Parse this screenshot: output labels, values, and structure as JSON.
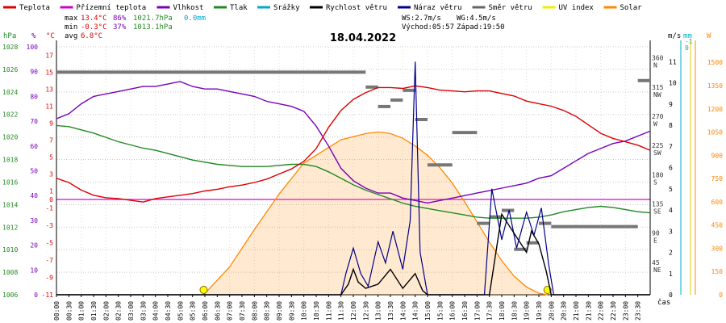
{
  "chart_data": {
    "type": "line",
    "title": "18.04.2022",
    "legend": [
      {
        "name": "Teplota",
        "color": "#dd0000"
      },
      {
        "name": "Přízemní teplota",
        "color": "#cc00cc"
      },
      {
        "name": "Vlhkost",
        "color": "#7700bb"
      },
      {
        "name": "Tlak",
        "color": "#228822"
      },
      {
        "name": "Srážky",
        "color": "#00aacc"
      },
      {
        "name": "Rychlost větru",
        "color": "#000000"
      },
      {
        "name": "Náraz větru",
        "color": "#000088"
      },
      {
        "name": "Směr větru",
        "color": "#666666"
      },
      {
        "name": "UV index",
        "color": "#eeee00"
      },
      {
        "name": "Solar",
        "color": "#ff8800"
      }
    ],
    "stats": {
      "max_label": "max",
      "min_label": "min",
      "avg_label": "avg",
      "temp_max": "13.4°C",
      "hum_max": "86%",
      "press_max": "1021.7hPa",
      "rain": "0.0mm",
      "temp_min": "-0.3°C",
      "hum_min": "37%",
      "press_min": "1013.1hPa",
      "temp_avg": "6.8°C",
      "ws": "WS:2.7m/s",
      "wg": "WG:4.5m/s",
      "sunrise": "Východ:05:57",
      "sunset": "Západ:19:50"
    },
    "axis_units": {
      "press": "hPa",
      "hum": "%",
      "temp": "°C",
      "wind": "m/s",
      "rain": "mm",
      "solar": "W",
      "time": "čas"
    },
    "axes": {
      "press_ticks": [
        "1028",
        "1026",
        "1024",
        "1022",
        "1020",
        "1018",
        "1016",
        "1014",
        "1012",
        "1010",
        "1008",
        "1006"
      ],
      "hum_ticks": [
        "100",
        "90",
        "80",
        "70",
        "60",
        "50",
        "40",
        "30",
        "20",
        "10",
        "0"
      ],
      "temp_upper_ticks": [
        "17",
        "15",
        "13",
        "11",
        "9",
        "7",
        "5",
        "3",
        "1"
      ],
      "temp_lower_ticks": [
        "-1",
        "-3",
        "-5",
        "-7",
        "-9",
        "-11"
      ],
      "dir_ticks": [
        {
          "deg": "360",
          "lbl": "N"
        },
        {
          "deg": "315",
          "lbl": "NW"
        },
        {
          "deg": "270",
          "lbl": "W"
        },
        {
          "deg": "225",
          "lbl": "SW"
        },
        {
          "deg": "180",
          "lbl": "S"
        },
        {
          "deg": "135",
          "lbl": "SE"
        },
        {
          "deg": "90",
          "lbl": "E"
        },
        {
          "deg": "45",
          "lbl": "NE"
        }
      ],
      "wind_ticks": [
        "11",
        "10",
        "9",
        "8",
        "7",
        "6",
        "5",
        "4",
        "3",
        "2",
        "1",
        "0"
      ],
      "rain_ticks": [
        "-1",
        "0"
      ],
      "solar_ticks": [
        "1500",
        "1350",
        "1200",
        "1050",
        "900",
        "750",
        "600",
        "450",
        "300",
        "150",
        "0"
      ],
      "x_ticks": [
        "00:00",
        "00:30",
        "01:00",
        "01:30",
        "02:00",
        "02:30",
        "03:00",
        "03:30",
        "04:00",
        "04:30",
        "05:00",
        "05:30",
        "06:00",
        "06:30",
        "07:00",
        "07:30",
        "08:00",
        "08:30",
        "09:00",
        "09:30",
        "10:00",
        "10:30",
        "11:00",
        "11:30",
        "12:00",
        "12:30",
        "13:00",
        "13:30",
        "14:00",
        "14:30",
        "15:00",
        "15:30",
        "16:00",
        "16:30",
        "17:00",
        "17:30",
        "18:00",
        "18:30",
        "19:00",
        "19:30",
        "20:00",
        "20:30",
        "21:00",
        "21:30",
        "22:00",
        "22:30",
        "23:00",
        "23:30"
      ]
    },
    "ranges": {
      "x_hours": [
        0,
        24
      ],
      "press_hpa": [
        1006,
        1029
      ],
      "hum_pct": [
        0,
        100
      ],
      "temp_upper_c": [
        0,
        18
      ],
      "temp_lower_c": [
        -11,
        0
      ],
      "wind_ms": [
        0,
        11.7
      ],
      "dir_deg": [
        0,
        382
      ],
      "solar_w": [
        0,
        1600
      ]
    },
    "series": [
      {
        "name": "Teplota",
        "units": "°C",
        "x": [
          0,
          0.5,
          1,
          1.5,
          2,
          2.5,
          3,
          3.5,
          4,
          4.5,
          5,
          5.5,
          6,
          6.5,
          7,
          7.5,
          8,
          8.5,
          9,
          9.5,
          10,
          10.5,
          11,
          11.5,
          12,
          12.5,
          13,
          13.5,
          14,
          14.5,
          15,
          15.5,
          16,
          16.5,
          17,
          17.5,
          18,
          18.5,
          19,
          19.5,
          20,
          20.5,
          21,
          21.5,
          22,
          22.5,
          23,
          23.5,
          24
        ],
        "y": [
          2.5,
          2.0,
          1.1,
          0.5,
          0.2,
          0.1,
          -0.1,
          -0.3,
          0.1,
          0.3,
          0.5,
          0.7,
          1.0,
          1.2,
          1.5,
          1.7,
          2.0,
          2.4,
          3.0,
          3.6,
          4.5,
          6.0,
          8.5,
          10.5,
          11.8,
          12.6,
          13.2,
          13.2,
          13.1,
          13.4,
          13.2,
          12.9,
          12.8,
          12.7,
          12.8,
          12.8,
          12.5,
          12.2,
          11.6,
          11.3,
          11.0,
          10.5,
          9.8,
          8.8,
          7.8,
          7.2,
          6.8,
          6.4,
          5.8
        ]
      },
      {
        "name": "Vlhkost",
        "units": "%",
        "x": [
          0,
          0.5,
          1,
          1.5,
          2,
          2.5,
          3,
          3.5,
          4,
          4.5,
          5,
          5.5,
          6,
          6.5,
          7,
          7.5,
          8,
          8.5,
          9,
          9.5,
          10,
          10.5,
          11,
          11.5,
          12,
          12.5,
          13,
          13.5,
          14,
          14.5,
          15,
          15.5,
          16,
          16.5,
          17,
          17.5,
          18,
          18.5,
          19,
          19.5,
          20,
          20.5,
          21,
          21.5,
          22,
          22.5,
          23,
          23.5,
          24
        ],
        "y": [
          71,
          73,
          77,
          80,
          81,
          82,
          83,
          84,
          84,
          85,
          86,
          84,
          83,
          83,
          82,
          81,
          80,
          78,
          77,
          76,
          74,
          68,
          60,
          51,
          46,
          43,
          41,
          41,
          39,
          38,
          37,
          38,
          39,
          40,
          41,
          42,
          43,
          44,
          45,
          47,
          48,
          51,
          54,
          57,
          59,
          61,
          62,
          64,
          66
        ]
      },
      {
        "name": "Tlak",
        "units": "hPa",
        "x": [
          0,
          0.5,
          1,
          1.5,
          2,
          2.5,
          3,
          3.5,
          4,
          4.5,
          5,
          5.5,
          6,
          6.5,
          7,
          7.5,
          8,
          8.5,
          9,
          9.5,
          10,
          10.5,
          11,
          11.5,
          12,
          12.5,
          13,
          13.5,
          14,
          14.5,
          15,
          15.5,
          16,
          16.5,
          17,
          17.5,
          18,
          18.5,
          19,
          19.5,
          20,
          20.5,
          21,
          21.5,
          22,
          22.5,
          23,
          23.5,
          24
        ],
        "y": [
          1021.7,
          1021.6,
          1021.3,
          1021.0,
          1020.6,
          1020.2,
          1019.9,
          1019.6,
          1019.4,
          1019.1,
          1018.8,
          1018.5,
          1018.3,
          1018.1,
          1018.0,
          1017.9,
          1017.9,
          1017.9,
          1018.0,
          1018.1,
          1018.1,
          1017.9,
          1017.4,
          1016.8,
          1016.2,
          1015.7,
          1015.3,
          1014.9,
          1014.5,
          1014.2,
          1014.0,
          1013.8,
          1013.6,
          1013.4,
          1013.2,
          1013.1,
          1013.1,
          1013.1,
          1013.1,
          1013.2,
          1013.4,
          1013.7,
          1013.9,
          1014.1,
          1014.2,
          1014.1,
          1013.9,
          1013.7,
          1013.6
        ]
      },
      {
        "name": "Solar",
        "units": "W",
        "x": [
          5.95,
          7,
          8,
          9,
          10,
          11,
          11.5,
          12,
          12.5,
          13,
          13.5,
          14,
          14.5,
          15,
          15.5,
          16,
          16.5,
          17,
          17.5,
          18,
          18.5,
          19,
          19.5,
          19.85
        ],
        "y": [
          0,
          180,
          420,
          650,
          850,
          950,
          1000,
          1020,
          1040,
          1050,
          1040,
          1010,
          960,
          900,
          820,
          720,
          600,
          470,
          340,
          220,
          120,
          50,
          10,
          0
        ]
      },
      {
        "name": "Směr větru",
        "units": "°",
        "x": [
          0,
          11,
          12.5,
          13,
          13.5,
          14,
          14.5,
          15,
          16,
          17,
          17.5,
          18,
          18.5,
          19,
          19.5,
          20,
          21,
          22,
          23,
          23.5,
          24
        ],
        "y": [
          343,
          343,
          320,
          290,
          300,
          315,
          270,
          200,
          250,
          110,
          120,
          130,
          70,
          80,
          110,
          105,
          105,
          105,
          105,
          330,
          330
        ]
      },
      {
        "name": "Rychlost větru",
        "units": "m/s",
        "x": [
          0,
          11.5,
          11.8,
          12,
          12.2,
          12.5,
          13,
          13.5,
          14,
          14.5,
          14.8,
          15,
          17.5,
          18,
          18.5,
          19,
          19.2,
          19.5,
          19.8,
          20,
          24
        ],
        "y": [
          0,
          0,
          0.5,
          1.2,
          0.6,
          0.3,
          0.5,
          1.2,
          0.3,
          1.0,
          0.2,
          0,
          0,
          3.8,
          2.9,
          2.0,
          3.0,
          2.4,
          1.1,
          0,
          0
        ]
      },
      {
        "name": "Náraz větru",
        "units": "m/s",
        "x": [
          0,
          11.5,
          11.7,
          12,
          12.3,
          12.6,
          13,
          13.3,
          13.6,
          14,
          14.3,
          14.5,
          14.7,
          15,
          17.3,
          17.6,
          18,
          18.3,
          18.6,
          19,
          19.3,
          19.6,
          19.9,
          20.1,
          24
        ],
        "y": [
          0,
          0,
          1.0,
          2.2,
          1.0,
          0.4,
          2.5,
          1.5,
          3.0,
          1.2,
          3.5,
          11.0,
          2.0,
          0,
          0,
          5.0,
          2.6,
          4.0,
          2.2,
          3.9,
          2.8,
          4.1,
          1.4,
          0,
          0
        ]
      }
    ]
  }
}
